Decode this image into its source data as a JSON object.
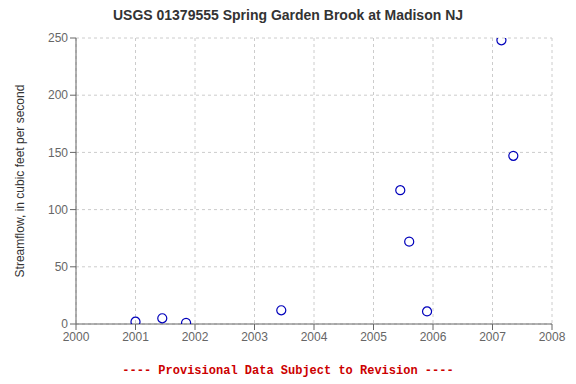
{
  "chart_data": {
    "type": "scatter",
    "title": "USGS 01379555 Spring Garden Brook at Madison NJ",
    "ylabel": "Streamflow, in cubic feet per second",
    "annotations": [
      "---- Provisional Data Subject to Revision ----"
    ],
    "x": [
      2001.0,
      2001.45,
      2001.85,
      2003.45,
      2005.45,
      2005.6,
      2005.9,
      2007.15,
      2007.35
    ],
    "values": [
      2,
      5,
      1,
      12,
      117,
      72,
      11,
      248,
      147
    ],
    "color": "#0000bb",
    "xlim": [
      2000,
      2008
    ],
    "ylim": [
      0,
      250
    ],
    "xticks": [
      2000,
      2001,
      2002,
      2003,
      2004,
      2005,
      2006,
      2007,
      2008
    ],
    "yticks": [
      0,
      50,
      100,
      150,
      200,
      250
    ],
    "grid": true
  }
}
